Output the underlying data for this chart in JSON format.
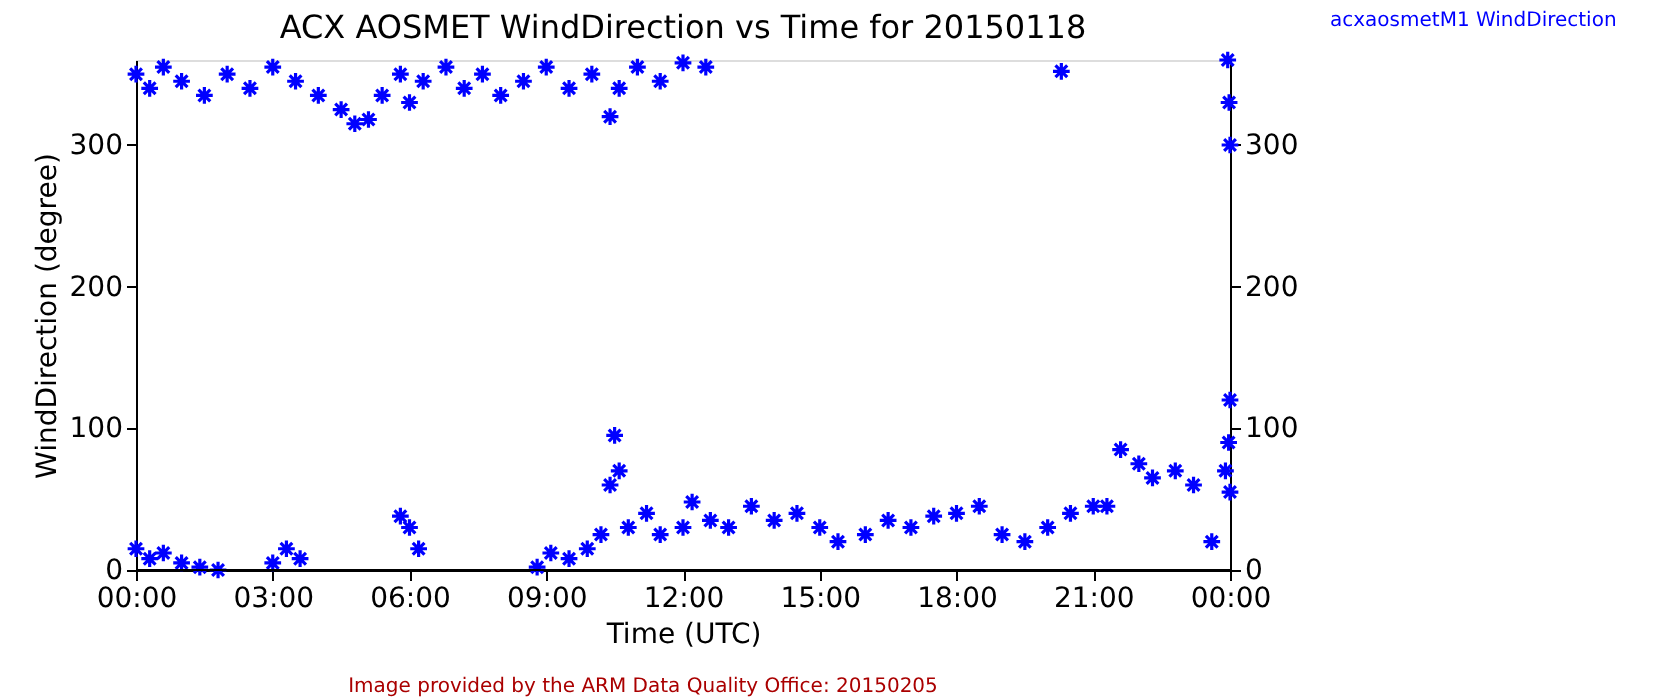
{
  "chart_data": {
    "type": "scatter",
    "title": "ACX AOSMET WindDirection vs Time for 20150118",
    "xlabel": "Time (UTC)",
    "ylabel": "WindDirection (degree)",
    "annotations": [
      "Image provided by the ARM Data Quality Office: 20150205"
    ],
    "xlim": [
      0,
      24
    ],
    "xticks": [
      {
        "value": 0,
        "label": "00:00"
      },
      {
        "value": 3,
        "label": "03:00"
      },
      {
        "value": 6,
        "label": "06:00"
      },
      {
        "value": 9,
        "label": "09:00"
      },
      {
        "value": 12,
        "label": "12:00"
      },
      {
        "value": 15,
        "label": "15:00"
      },
      {
        "value": 18,
        "label": "18:00"
      },
      {
        "value": 21,
        "label": "21:00"
      },
      {
        "value": 24,
        "label": "00:00"
      }
    ],
    "ylim": [
      0,
      360
    ],
    "yticks": [
      0,
      100,
      200,
      300
    ],
    "y2lim": [
      0,
      360
    ],
    "y2ticks": [
      0,
      100,
      200,
      300
    ],
    "marker": "cross",
    "grid": false,
    "legend": "top right",
    "series": [
      {
        "name": "acxaosmetM1 WindDirection",
        "color": "#0000ff",
        "x": [
          0.0,
          0.3,
          0.6,
          1.0,
          1.5,
          2.0,
          2.5,
          3.0,
          3.5,
          4.0,
          4.5,
          4.8,
          5.1,
          5.4,
          5.8,
          6.0,
          6.3,
          6.8,
          7.2,
          7.6,
          8.0,
          8.5,
          9.0,
          9.5,
          10.0,
          10.4,
          10.6,
          11.0,
          11.5,
          12.0,
          12.5,
          20.3,
          23.95,
          24.0,
          23.98,
          0.0,
          0.3,
          0.6,
          1.0,
          1.4,
          1.8,
          3.0,
          3.3,
          3.6,
          5.8,
          6.0,
          6.2,
          8.8,
          9.1,
          9.5,
          9.9,
          10.2,
          10.4,
          10.5,
          10.6,
          10.8,
          11.2,
          11.5,
          12.0,
          12.2,
          12.6,
          13.0,
          13.5,
          14.0,
          14.5,
          15.0,
          15.4,
          16.0,
          16.5,
          17.0,
          17.5,
          18.0,
          18.5,
          19.0,
          19.5,
          20.0,
          20.5,
          21.0,
          21.3,
          21.6,
          22.0,
          22.3,
          22.8,
          23.2,
          23.6,
          23.9,
          24.0,
          23.97,
          24.0
        ],
        "values": [
          350,
          340,
          355,
          345,
          335,
          350,
          340,
          355,
          345,
          335,
          325,
          315,
          318,
          335,
          350,
          330,
          345,
          355,
          340,
          350,
          335,
          345,
          355,
          340,
          350,
          320,
          340,
          355,
          345,
          358,
          355,
          352,
          360,
          300,
          330,
          15,
          8,
          12,
          5,
          2,
          0,
          5,
          15,
          8,
          38,
          30,
          15,
          2,
          12,
          8,
          15,
          25,
          60,
          95,
          70,
          30,
          40,
          25,
          30,
          48,
          35,
          30,
          45,
          35,
          40,
          30,
          20,
          25,
          35,
          30,
          38,
          40,
          45,
          25,
          20,
          30,
          40,
          45,
          45,
          85,
          75,
          65,
          70,
          60,
          20,
          70,
          120,
          90,
          55
        ]
      }
    ]
  }
}
